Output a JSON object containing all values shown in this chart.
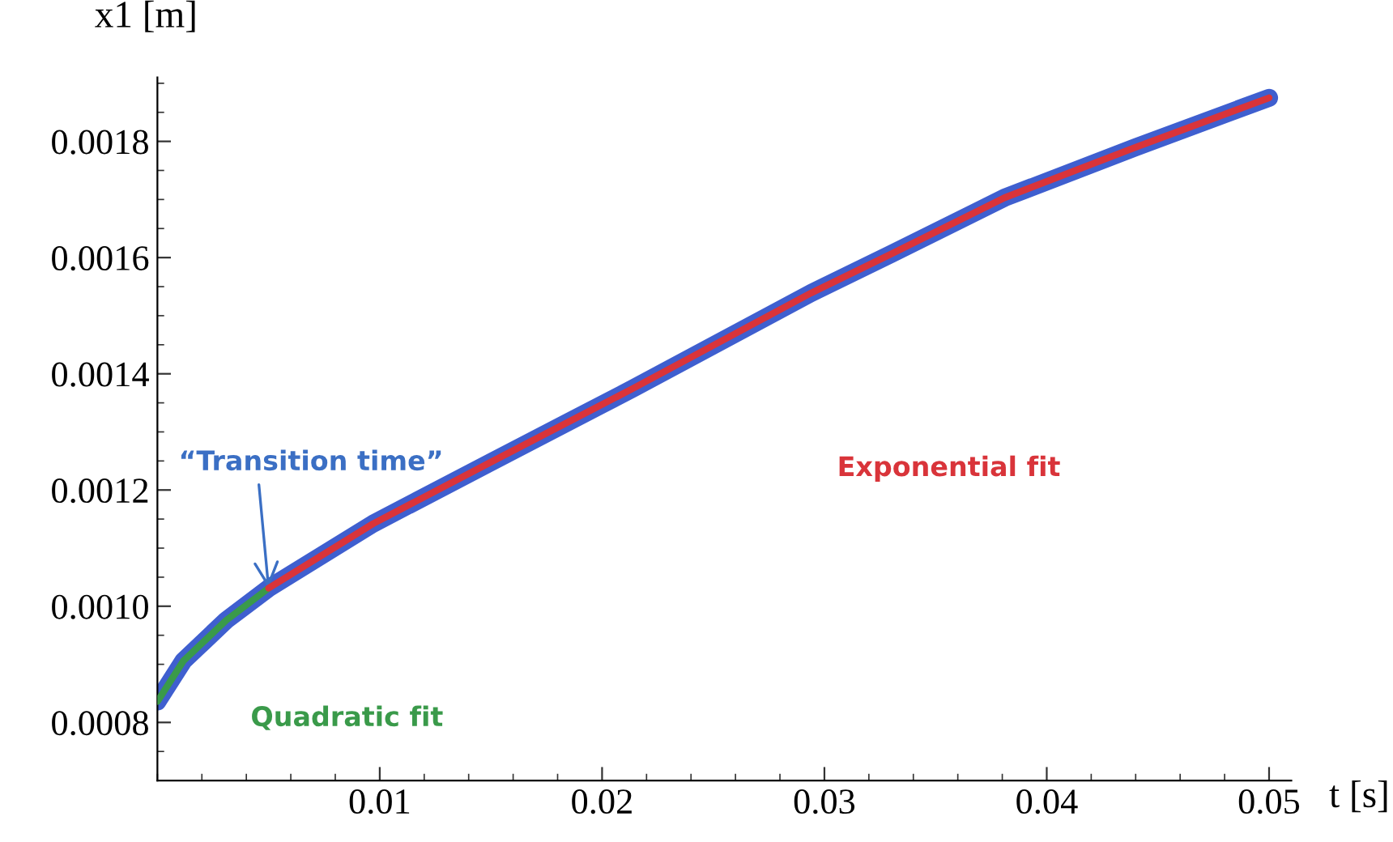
{
  "chart_data": {
    "type": "line",
    "xlabel": "t [s]",
    "ylabel": "x1 [m]",
    "series": [
      {
        "color": "#3f5fcf",
        "x": [
          0,
          0.00117,
          0.0031,
          0.005,
          0.0097,
          0.015,
          0.0214,
          0.0294,
          0.033,
          0.0381,
          0.044,
          0.05
        ],
        "values": [
          0.000836,
          0.000906,
          0.000976,
          0.001031,
          0.001142,
          0.001248,
          0.001375,
          0.001539,
          0.001606,
          0.001703,
          0.00179,
          0.001875
        ]
      },
      {
        "name": "Quadratic fit",
        "color": "#3a9a4a",
        "x": [
          0,
          0.00117,
          0.0031,
          0.005
        ],
        "values": [
          0.000836,
          0.000906,
          0.000976,
          0.001031
        ]
      },
      {
        "name": "Exponential fit",
        "color": "#d9343a",
        "x": [
          0.005,
          0.0097,
          0.015,
          0.0214,
          0.0294,
          0.033,
          0.0381,
          0.044,
          0.05
        ],
        "values": [
          0.001031,
          0.001142,
          0.001248,
          0.001375,
          0.001539,
          0.001606,
          0.001703,
          0.00179,
          0.001875
        ]
      }
    ],
    "annotations": [
      {
        "text": "“Transition time”",
        "x": 0.005,
        "y": 0.001031
      }
    ],
    "xlim": [
      0,
      0.051
    ],
    "ylim": [
      0.0007,
      0.00191
    ],
    "xticks": [
      {
        "value": 0.01,
        "label": "0.01"
      },
      {
        "value": 0.02,
        "label": "0.02"
      },
      {
        "value": 0.03,
        "label": "0.03"
      },
      {
        "value": 0.04,
        "label": "0.04"
      },
      {
        "value": 0.05,
        "label": "0.05"
      }
    ],
    "yticks": [
      {
        "value": 0.0008,
        "label": "0.0008"
      },
      {
        "value": 0.001,
        "label": "0.0010"
      },
      {
        "value": 0.0012,
        "label": "0.0012"
      },
      {
        "value": 0.0014,
        "label": "0.0014"
      },
      {
        "value": 0.0016,
        "label": "0.0016"
      },
      {
        "value": 0.0018,
        "label": "0.0018"
      }
    ],
    "grid": false,
    "legend": false,
    "marker": "none",
    "line_style": "solid"
  }
}
